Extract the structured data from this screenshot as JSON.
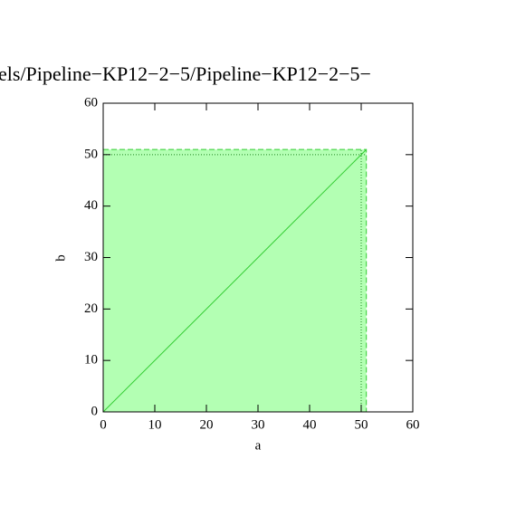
{
  "chart_data": {
    "type": "region",
    "title": "els/Pipeline−KP12−2−5/Pipeline−KP12−2−5−",
    "x_label": "a",
    "y_label": "b",
    "xlim": [
      0,
      60
    ],
    "ylim": [
      0,
      60
    ],
    "xticks": [
      0,
      10,
      20,
      30,
      40,
      50,
      60
    ],
    "yticks": [
      0,
      10,
      20,
      30,
      40,
      50,
      60
    ],
    "region": {
      "x": [
        0,
        51
      ],
      "y": [
        0,
        51
      ],
      "color": "#b3ffb3",
      "edge_color": "#33cc33"
    },
    "series": [
      {
        "x": [
          0,
          51
        ],
        "values": [
          0,
          51
        ],
        "color": "#33cc33"
      }
    ],
    "dotted_x": 50,
    "dotted_y": 50
  }
}
